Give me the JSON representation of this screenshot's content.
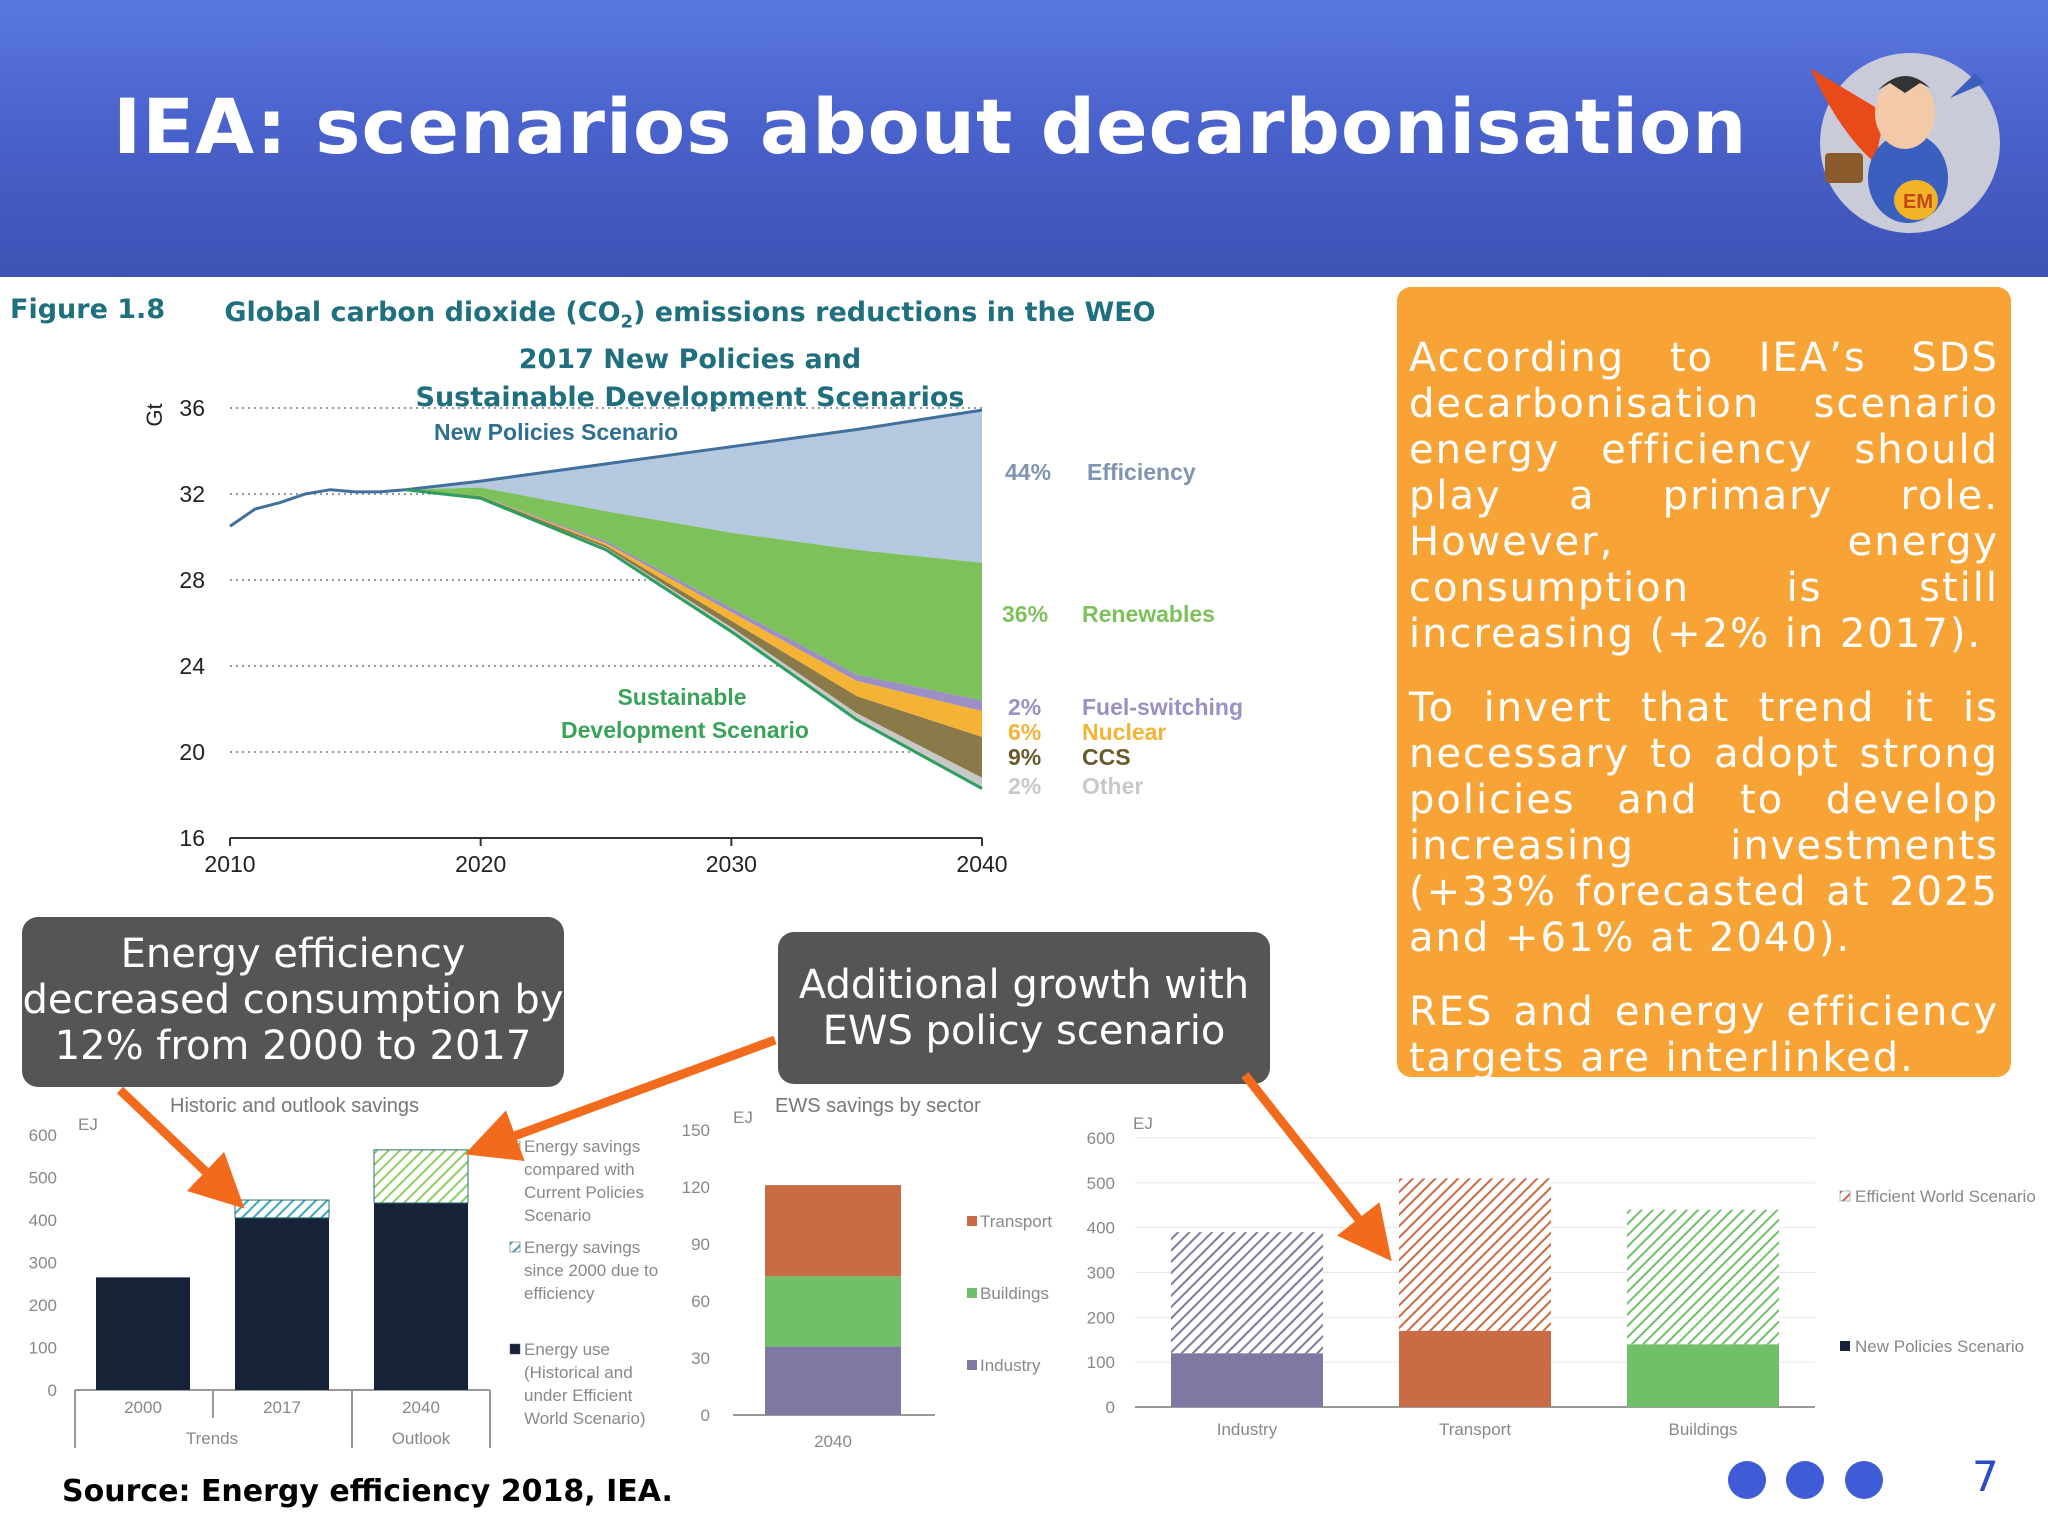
{
  "slide": {
    "title": "IEA: scenarios about decarbonisation",
    "figure_label": "Figure 1.8",
    "figure_title": "Global carbon dioxide (CO₂) emissions reductions in the WEO 2017 New Policies and Sustainable Development Scenarios",
    "sidebox": {
      "p1": "According to IEA’s SDS decarbonisation scenario energy efficiency should play a primary role. However, energy consumption is still increasing (+2% in 2017).",
      "p2": "To invert that trend it is necessary to adopt strong policies and to develop increasing investments (+33% forecasted at 2025 and +61% at 2040).",
      "p3": "RES and energy efficiency targets are interlinked."
    },
    "callout_left": "Energy efficiency decreased consumption by 12% from 2000 to 2017",
    "callout_mid": "Additional growth with EWS policy scenario",
    "source": "Source: Energy efficiency 2018, IEA.",
    "page_number": "7"
  },
  "colors": {
    "header": "#4a62cc",
    "sidebox": "#f7a335",
    "arrow": "#f26b1d",
    "nps_line": "#41709c",
    "efficiency": "#b4c8e0",
    "renewables": "#7dc15a",
    "fuel_switching": "#9b8fc4",
    "nuclear": "#f5b336",
    "ccs": "#8a7a4a",
    "other": "#c8c8c8",
    "sds_line": "#2e9e5e",
    "navy": "#162238",
    "transport": "#c96b45",
    "buildings": "#72bf6a",
    "industry": "#7e79a3"
  },
  "chart_data": [
    {
      "type": "area",
      "unit_label": "Gt",
      "x_ticks": [
        2010,
        2020,
        2030,
        2040
      ],
      "y_ticks": [
        16,
        20,
        24,
        28,
        32,
        36
      ],
      "ylim": [
        16,
        36
      ],
      "xlim": [
        2010,
        2040
      ],
      "grid": "dotted horizontal",
      "nps_label": "New Policies Scenario",
      "sds_label_1": "Sustainable",
      "sds_label_2": "Development Scenario",
      "historic": {
        "x": [
          2010,
          2011,
          2012,
          2013,
          2014,
          2015,
          2016,
          2017
        ],
        "y": [
          30.5,
          31.3,
          31.6,
          32.0,
          32.2,
          32.1,
          32.1,
          32.2
        ]
      },
      "nps": {
        "x": [
          2017,
          2020,
          2025,
          2030,
          2035,
          2040
        ],
        "y": [
          32.2,
          32.6,
          33.4,
          34.2,
          35.0,
          35.9
        ]
      },
      "boundaries": {
        "x": [
          2017,
          2020,
          2025,
          2030,
          2035,
          2040
        ],
        "efficiency_bottom": [
          32.2,
          32.3,
          31.2,
          30.2,
          29.4,
          28.8
        ],
        "renewables_bottom": [
          32.2,
          31.9,
          29.8,
          26.7,
          23.6,
          22.4
        ],
        "fuel_switching_bottom": [
          32.2,
          31.9,
          29.7,
          26.5,
          23.3,
          21.9
        ],
        "nuclear_bottom": [
          32.2,
          31.9,
          29.6,
          26.1,
          22.6,
          20.7
        ],
        "ccs_bottom": [
          32.2,
          31.8,
          29.5,
          25.8,
          21.8,
          18.8
        ],
        "sds": [
          32.2,
          31.8,
          29.4,
          25.6,
          21.5,
          18.3
        ]
      },
      "legend": [
        {
          "pct": "44%",
          "name": "Efficiency"
        },
        {
          "pct": "36%",
          "name": "Renewables"
        },
        {
          "pct": "2%",
          "name": "Fuel-switching"
        },
        {
          "pct": "6%",
          "name": "Nuclear"
        },
        {
          "pct": "9%",
          "name": "CCS"
        },
        {
          "pct": "2%",
          "name": "Other"
        }
      ]
    },
    {
      "type": "bar",
      "title": "Historic and outlook savings",
      "unit_label": "EJ",
      "ylim": [
        0,
        600
      ],
      "y_ticks": [
        0,
        100,
        200,
        300,
        400,
        500,
        600
      ],
      "categories": [
        "2000",
        "2017",
        "2040"
      ],
      "groups": [
        {
          "label": "Trends"
        },
        {
          "label": "Outlook"
        }
      ],
      "series": [
        {
          "name": "Energy use (Historical and under Efficient World Scenario)",
          "values": [
            265,
            405,
            440
          ]
        },
        {
          "name": "Energy savings since 2000 due to efficiency",
          "values": [
            0,
            42,
            0
          ]
        },
        {
          "name": "Energy savings compared with Current Policies Scenario",
          "values": [
            0,
            0,
            125
          ]
        }
      ],
      "legend": [
        {
          "lines": [
            "Energy savings",
            "compared with",
            "Current Policies",
            "Scenario"
          ]
        },
        {
          "lines": [
            "Energy savings",
            "since 2000 due to",
            "efficiency"
          ]
        },
        {
          "lines": [
            "Energy use",
            "(Historical and",
            "under Efficient",
            "World Scenario)"
          ]
        }
      ]
    },
    {
      "type": "bar",
      "title": "EWS savings by sector",
      "unit_label": "EJ",
      "ylim": [
        0,
        150
      ],
      "y_ticks": [
        0,
        30,
        60,
        90,
        120,
        150
      ],
      "categories": [
        "2040"
      ],
      "series": [
        {
          "name": "Industry",
          "values": [
            36
          ]
        },
        {
          "name": "Buildings",
          "values": [
            37
          ]
        },
        {
          "name": "Transport",
          "values": [
            48
          ]
        }
      ]
    },
    {
      "type": "bar",
      "unit_label": "EJ",
      "ylim": [
        0,
        600
      ],
      "y_ticks": [
        0,
        100,
        200,
        300,
        400,
        500,
        600
      ],
      "categories": [
        "Industry",
        "Transport",
        "Buildings"
      ],
      "series": [
        {
          "name": "New Policies Scenario",
          "values": [
            120,
            170,
            140
          ]
        },
        {
          "name": "Efficient World Scenario",
          "values": [
            270,
            340,
            300
          ]
        }
      ]
    }
  ]
}
